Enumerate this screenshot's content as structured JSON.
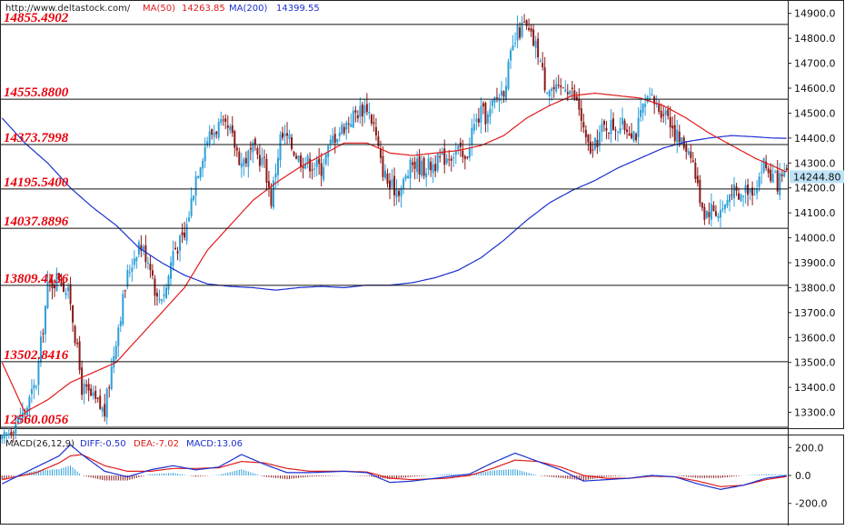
{
  "header": {
    "url": "http://www.deltastock.com/",
    "ma50_label": "MA(50)",
    "ma50_value": "14263.85",
    "ma200_label": "MA(200)",
    "ma200_value": "14399.55"
  },
  "macd_header": {
    "name": "MACD(26,12,9)",
    "diff": "DIFF:-0.50",
    "dea": "DEA:-7.02",
    "macd": "MACD:13.06"
  },
  "colors": {
    "up_candle": "#2e9fd8",
    "down_candle": "#8b1a1a",
    "ma50": "#e01b1b",
    "ma200": "#1b2fd0",
    "level_text": "#e8000b",
    "diff_line": "#1b2fd0",
    "dea_line": "#e01b1b",
    "hist_pos": "#2e9fd8",
    "hist_neg": "#8b1a1a",
    "current_price_box": "#bfe3f7"
  },
  "current_price": "14244.80",
  "chart_data": [
    {
      "type": "candlestick",
      "ylim": [
        13240,
        14950
      ],
      "y_ticks": [
        {
          "label": "14900.0",
          "value": 14900
        },
        {
          "label": "14800.0",
          "value": 14800
        },
        {
          "label": "14700.0",
          "value": 14700
        },
        {
          "label": "14600.0",
          "value": 14600
        },
        {
          "label": "14500.0",
          "value": 14500
        },
        {
          "label": "14400.0",
          "value": 14400
        },
        {
          "label": "14300.0",
          "value": 14300
        },
        {
          "label": "14200.0",
          "value": 14200
        },
        {
          "label": "14100.0",
          "value": 14100
        },
        {
          "label": "14000.0",
          "value": 14000
        },
        {
          "label": "13900.0",
          "value": 13900
        },
        {
          "label": "13800.0",
          "value": 13800
        },
        {
          "label": "13700.0",
          "value": 13700
        },
        {
          "label": "13600.0",
          "value": 13600
        },
        {
          "label": "13500.0",
          "value": 13500
        },
        {
          "label": "13400.0",
          "value": 13400
        },
        {
          "label": "13300.0",
          "value": 13300
        }
      ],
      "levels": [
        {
          "label": "14855.4902",
          "value": 14855.49
        },
        {
          "label": "14555.8800",
          "value": 14555.88
        },
        {
          "label": "14373.7998",
          "value": 14373.8
        },
        {
          "label": "14195.5400",
          "value": 14195.54
        },
        {
          "label": "14037.8896",
          "value": 14037.89
        },
        {
          "label": "13809.4136",
          "value": 13809.41
        },
        {
          "label": "13502.8416",
          "value": 13502.84
        },
        {
          "label": "12560.0056",
          "value": 12560.01
        }
      ],
      "close_anchors": [
        [
          0,
          13180
        ],
        [
          5,
          13250
        ],
        [
          10,
          13300
        ],
        [
          15,
          13420
        ],
        [
          20,
          13800
        ],
        [
          25,
          13850
        ],
        [
          30,
          13750
        ],
        [
          35,
          13400
        ],
        [
          40,
          13350
        ],
        [
          45,
          13300
        ],
        [
          50,
          13600
        ],
        [
          55,
          13850
        ],
        [
          60,
          13980
        ],
        [
          65,
          13900
        ],
        [
          68,
          13750
        ],
        [
          72,
          13800
        ],
        [
          75,
          13950
        ],
        [
          80,
          14000
        ],
        [
          85,
          14250
        ],
        [
          90,
          14400
        ],
        [
          95,
          14450
        ],
        [
          100,
          14420
        ],
        [
          105,
          14300
        ],
        [
          110,
          14350
        ],
        [
          115,
          14300
        ],
        [
          118,
          14150
        ],
        [
          122,
          14400
        ],
        [
          125,
          14400
        ],
        [
          130,
          14320
        ],
        [
          135,
          14300
        ],
        [
          140,
          14280
        ],
        [
          145,
          14400
        ],
        [
          150,
          14450
        ],
        [
          155,
          14500
        ],
        [
          160,
          14530
        ],
        [
          163,
          14450
        ],
        [
          166,
          14300
        ],
        [
          170,
          14200
        ],
        [
          175,
          14200
        ],
        [
          180,
          14300
        ],
        [
          185,
          14280
        ],
        [
          190,
          14300
        ],
        [
          195,
          14330
        ],
        [
          200,
          14350
        ],
        [
          203,
          14300
        ],
        [
          206,
          14430
        ],
        [
          210,
          14500
        ],
        [
          213,
          14480
        ],
        [
          216,
          14550
        ],
        [
          220,
          14600
        ],
        [
          223,
          14720
        ],
        [
          226,
          14820
        ],
        [
          229,
          14850
        ],
        [
          232,
          14800
        ],
        [
          235,
          14750
        ],
        [
          238,
          14620
        ],
        [
          241,
          14600
        ],
        [
          244,
          14580
        ],
        [
          247,
          14620
        ],
        [
          250,
          14580
        ],
        [
          253,
          14520
        ],
        [
          256,
          14380
        ],
        [
          259,
          14340
        ],
        [
          262,
          14420
        ],
        [
          265,
          14450
        ],
        [
          270,
          14450
        ],
        [
          275,
          14440
        ],
        [
          278,
          14420
        ],
        [
          281,
          14520
        ],
        [
          285,
          14550
        ],
        [
          288,
          14520
        ],
        [
          292,
          14500
        ],
        [
          295,
          14420
        ],
        [
          298,
          14380
        ],
        [
          302,
          14350
        ],
        [
          305,
          14200
        ],
        [
          308,
          14100
        ],
        [
          311,
          14120
        ],
        [
          314,
          14100
        ],
        [
          317,
          14130
        ],
        [
          320,
          14200
        ],
        [
          323,
          14150
        ],
        [
          326,
          14200
        ],
        [
          330,
          14200
        ],
        [
          334,
          14300
        ],
        [
          337,
          14250
        ],
        [
          340,
          14220
        ],
        [
          342,
          14230
        ],
        [
          344,
          14245
        ]
      ],
      "ma50_anchors": [
        [
          0,
          13500
        ],
        [
          10,
          13300
        ],
        [
          20,
          13350
        ],
        [
          30,
          13420
        ],
        [
          40,
          13460
        ],
        [
          50,
          13500
        ],
        [
          60,
          13600
        ],
        [
          70,
          13700
        ],
        [
          80,
          13800
        ],
        [
          90,
          13950
        ],
        [
          100,
          14050
        ],
        [
          110,
          14150
        ],
        [
          120,
          14220
        ],
        [
          130,
          14280
        ],
        [
          140,
          14330
        ],
        [
          150,
          14380
        ],
        [
          160,
          14380
        ],
        [
          170,
          14340
        ],
        [
          180,
          14330
        ],
        [
          190,
          14340
        ],
        [
          200,
          14350
        ],
        [
          210,
          14370
        ],
        [
          220,
          14410
        ],
        [
          230,
          14480
        ],
        [
          240,
          14530
        ],
        [
          250,
          14570
        ],
        [
          260,
          14580
        ],
        [
          270,
          14570
        ],
        [
          280,
          14560
        ],
        [
          290,
          14530
        ],
        [
          300,
          14480
        ],
        [
          310,
          14420
        ],
        [
          320,
          14370
        ],
        [
          330,
          14320
        ],
        [
          340,
          14280
        ],
        [
          344,
          14264
        ]
      ],
      "ma200_anchors": [
        [
          0,
          14480
        ],
        [
          10,
          14380
        ],
        [
          20,
          14300
        ],
        [
          30,
          14200
        ],
        [
          40,
          14120
        ],
        [
          50,
          14050
        ],
        [
          60,
          13960
        ],
        [
          70,
          13900
        ],
        [
          80,
          13850
        ],
        [
          90,
          13815
        ],
        [
          100,
          13805
        ],
        [
          110,
          13800
        ],
        [
          120,
          13790
        ],
        [
          130,
          13800
        ],
        [
          140,
          13805
        ],
        [
          150,
          13800
        ],
        [
          160,
          13810
        ],
        [
          170,
          13810
        ],
        [
          180,
          13820
        ],
        [
          190,
          13840
        ],
        [
          200,
          13870
        ],
        [
          210,
          13920
        ],
        [
          220,
          13990
        ],
        [
          230,
          14070
        ],
        [
          240,
          14140
        ],
        [
          250,
          14190
        ],
        [
          260,
          14230
        ],
        [
          270,
          14280
        ],
        [
          280,
          14320
        ],
        [
          290,
          14360
        ],
        [
          300,
          14385
        ],
        [
          310,
          14400
        ],
        [
          320,
          14410
        ],
        [
          330,
          14405
        ],
        [
          338,
          14400
        ],
        [
          344,
          14399
        ]
      ]
    },
    {
      "type": "macd",
      "ylim": [
        -280,
        280
      ],
      "y_ticks": [
        {
          "label": "200.0",
          "value": 200
        },
        {
          "label": "0.0",
          "value": 0
        },
        {
          "label": "-200.0",
          "value": -200
        }
      ],
      "diff": -0.5,
      "dea": -7.02,
      "macd": 13.06,
      "diff_anchors": [
        [
          0,
          -60
        ],
        [
          15,
          60
        ],
        [
          25,
          140
        ],
        [
          30,
          220
        ],
        [
          35,
          150
        ],
        [
          45,
          30
        ],
        [
          55,
          -10
        ],
        [
          65,
          40
        ],
        [
          75,
          70
        ],
        [
          85,
          40
        ],
        [
          95,
          60
        ],
        [
          105,
          150
        ],
        [
          115,
          80
        ],
        [
          125,
          20
        ],
        [
          135,
          20
        ],
        [
          150,
          30
        ],
        [
          160,
          20
        ],
        [
          170,
          -50
        ],
        [
          180,
          -40
        ],
        [
          195,
          -10
        ],
        [
          205,
          10
        ],
        [
          215,
          90
        ],
        [
          225,
          160
        ],
        [
          235,
          100
        ],
        [
          245,
          40
        ],
        [
          255,
          -40
        ],
        [
          265,
          -30
        ],
        [
          275,
          -20
        ],
        [
          285,
          0
        ],
        [
          295,
          -10
        ],
        [
          305,
          -60
        ],
        [
          315,
          -100
        ],
        [
          325,
          -70
        ],
        [
          335,
          -20
        ],
        [
          344,
          -1
        ]
      ],
      "dea_anchors": [
        [
          0,
          -30
        ],
        [
          15,
          20
        ],
        [
          25,
          90
        ],
        [
          30,
          140
        ],
        [
          35,
          150
        ],
        [
          45,
          70
        ],
        [
          55,
          30
        ],
        [
          65,
          30
        ],
        [
          75,
          50
        ],
        [
          85,
          50
        ],
        [
          95,
          55
        ],
        [
          105,
          100
        ],
        [
          115,
          90
        ],
        [
          125,
          50
        ],
        [
          135,
          30
        ],
        [
          150,
          30
        ],
        [
          160,
          25
        ],
        [
          170,
          -20
        ],
        [
          180,
          -30
        ],
        [
          195,
          -20
        ],
        [
          205,
          0
        ],
        [
          215,
          50
        ],
        [
          225,
          110
        ],
        [
          235,
          100
        ],
        [
          245,
          60
        ],
        [
          255,
          0
        ],
        [
          265,
          -20
        ],
        [
          275,
          -20
        ],
        [
          285,
          -5
        ],
        [
          295,
          -10
        ],
        [
          305,
          -40
        ],
        [
          315,
          -80
        ],
        [
          325,
          -70
        ],
        [
          335,
          -30
        ],
        [
          344,
          -7
        ]
      ]
    }
  ]
}
